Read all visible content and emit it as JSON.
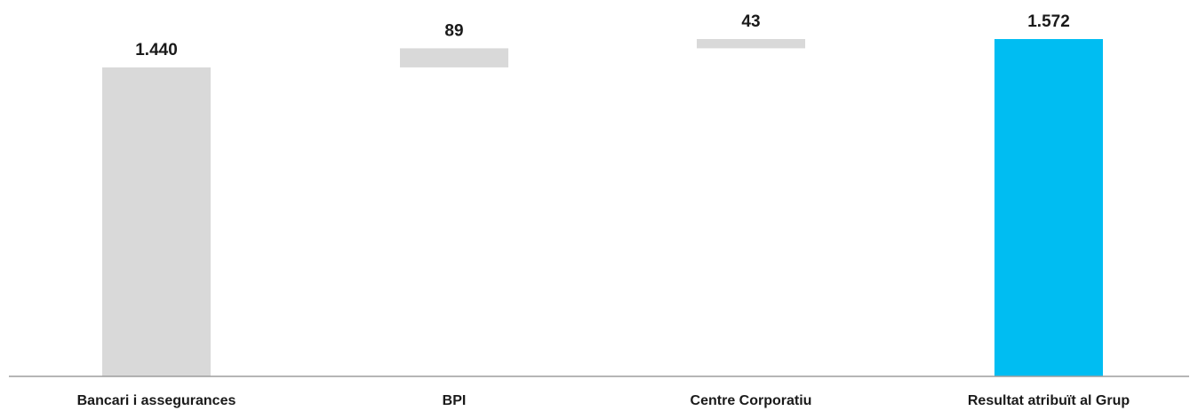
{
  "chart_data": {
    "type": "bar",
    "subtype": "waterfall",
    "title": "",
    "xlabel": "",
    "ylabel": "",
    "grid": false,
    "legend": "none",
    "ylim": [
      0,
      1572
    ],
    "categories": [
      "Bancari i assegurances",
      "BPI",
      "Centre Corporatiu",
      "Resultat atribuït al Grup"
    ],
    "values": [
      1440,
      89,
      43,
      1572
    ],
    "value_labels": [
      "1.440",
      "89",
      "43",
      "1.572"
    ],
    "bar_kinds": [
      "increase",
      "increase",
      "increase",
      "total"
    ],
    "colors": {
      "step": "#d9d9d9",
      "total": "#00bdf2",
      "axis": "#9e9e9e",
      "text": "#1a1a1a"
    }
  }
}
